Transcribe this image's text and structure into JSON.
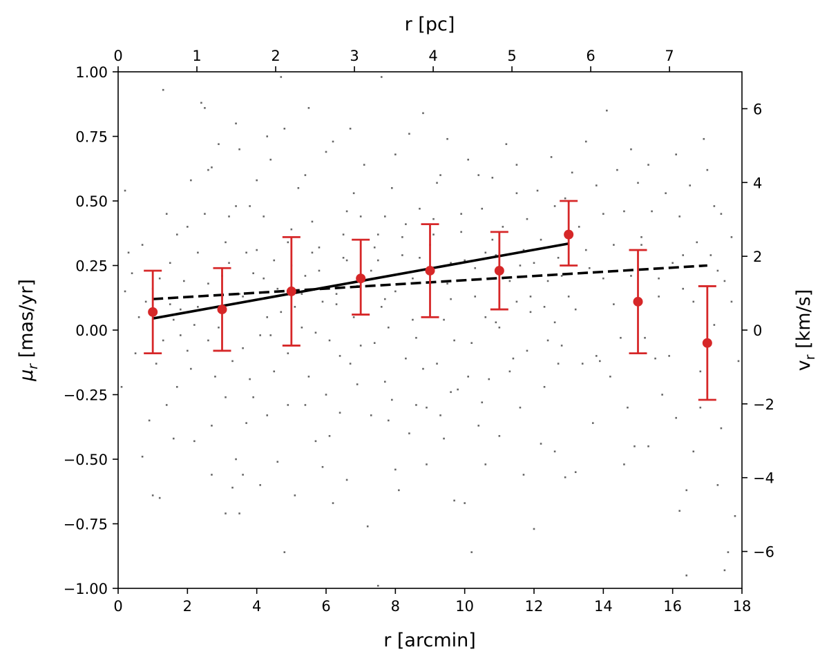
{
  "chart_data": {
    "type": "scatter",
    "xlabel": "r [arcmin]",
    "ylabel": "μ",
    "ylabel_subscript": "r",
    "ylabel_units": " [mas/yr]",
    "top_xlabel": "r [pc]",
    "right_ylabel": "v",
    "right_ylabel_subscript": "r",
    "right_ylabel_units": " [km/s]",
    "xlim": [
      0,
      18
    ],
    "ylim": [
      -1.0,
      1.0
    ],
    "top_xlim": [
      0,
      7.92
    ],
    "right_ylim": [
      -7.0,
      7.0
    ],
    "x_ticks": [
      {
        "value": 0,
        "label": "0"
      },
      {
        "value": 2,
        "label": "2"
      },
      {
        "value": 4,
        "label": "4"
      },
      {
        "value": 6,
        "label": "6"
      },
      {
        "value": 8,
        "label": "8"
      },
      {
        "value": 10,
        "label": "10"
      },
      {
        "value": 12,
        "label": "12"
      },
      {
        "value": 14,
        "label": "14"
      },
      {
        "value": 16,
        "label": "16"
      },
      {
        "value": 18,
        "label": "18"
      }
    ],
    "y_ticks": [
      {
        "value": 1.0,
        "label": "1.00"
      },
      {
        "value": 0.75,
        "label": "0.75"
      },
      {
        "value": 0.5,
        "label": "0.50"
      },
      {
        "value": 0.25,
        "label": "0.25"
      },
      {
        "value": 0.0,
        "label": "0.00"
      },
      {
        "value": -0.25,
        "label": "−0.25"
      },
      {
        "value": -0.5,
        "label": "−0.50"
      },
      {
        "value": -0.75,
        "label": "−0.75"
      },
      {
        "value": -1.0,
        "label": "−1.00"
      }
    ],
    "top_x_ticks": [
      {
        "value": 0,
        "label": "0"
      },
      {
        "value": 1,
        "label": "1"
      },
      {
        "value": 2,
        "label": "2"
      },
      {
        "value": 3,
        "label": "3"
      },
      {
        "value": 4,
        "label": "4"
      },
      {
        "value": 5,
        "label": "5"
      },
      {
        "value": 6,
        "label": "6"
      },
      {
        "value": 7,
        "label": "7"
      }
    ],
    "right_y_ticks": [
      {
        "value": 6,
        "label": "6"
      },
      {
        "value": 4,
        "label": "4"
      },
      {
        "value": 2,
        "label": "2"
      },
      {
        "value": 0,
        "label": "0"
      },
      {
        "value": -2,
        "label": "−2"
      },
      {
        "value": -4,
        "label": "−4"
      },
      {
        "value": -6,
        "label": "−6"
      }
    ],
    "binned": {
      "color": "#d62728",
      "points": [
        {
          "x": 1,
          "y": 0.07,
          "ylo": -0.09,
          "yhi": 0.23
        },
        {
          "x": 3,
          "y": 0.08,
          "ylo": -0.08,
          "yhi": 0.24
        },
        {
          "x": 5,
          "y": 0.15,
          "ylo": -0.06,
          "yhi": 0.36
        },
        {
          "x": 7,
          "y": 0.2,
          "ylo": 0.06,
          "yhi": 0.35
        },
        {
          "x": 9,
          "y": 0.23,
          "ylo": 0.05,
          "yhi": 0.41
        },
        {
          "x": 11,
          "y": 0.23,
          "ylo": 0.08,
          "yhi": 0.38
        },
        {
          "x": 13,
          "y": 0.37,
          "ylo": 0.25,
          "yhi": 0.5
        },
        {
          "x": 15,
          "y": 0.11,
          "ylo": -0.09,
          "yhi": 0.31
        },
        {
          "x": 17,
          "y": -0.05,
          "ylo": -0.27,
          "yhi": 0.17
        }
      ]
    },
    "fit_solid": {
      "color": "#000000",
      "x": [
        1,
        13
      ],
      "y": [
        0.045,
        0.335
      ]
    },
    "fit_dashed": {
      "color": "#000000",
      "x": [
        1,
        17
      ],
      "y": [
        0.12,
        0.25
      ]
    },
    "scatter_points": [
      [
        0.2,
        0.54
      ],
      [
        0.3,
        0.3
      ],
      [
        0.2,
        0.15
      ],
      [
        0.1,
        -0.22
      ],
      [
        0.5,
        -0.09
      ],
      [
        0.7,
        0.33
      ],
      [
        0.8,
        0.11
      ],
      [
        1.2,
        0.2
      ],
      [
        1.1,
        -0.13
      ],
      [
        0.9,
        -0.35
      ],
      [
        0.7,
        -0.49
      ],
      [
        1.0,
        -0.64
      ],
      [
        1.2,
        -0.65
      ],
      [
        1.3,
        0.93
      ],
      [
        1.4,
        -0.29
      ],
      [
        1.5,
        0.26
      ],
      [
        1.6,
        0.04
      ],
      [
        1.7,
        -0.22
      ],
      [
        1.8,
        -0.02
      ],
      [
        1.9,
        0.19
      ],
      [
        2.0,
        0.4
      ],
      [
        2.1,
        -0.15
      ],
      [
        2.2,
        -0.43
      ],
      [
        2.1,
        0.58
      ],
      [
        2.4,
        0.88
      ],
      [
        2.5,
        0.86
      ],
      [
        2.3,
        0.09
      ],
      [
        2.6,
        -0.04
      ],
      [
        2.7,
        -0.37
      ],
      [
        2.6,
        0.62
      ],
      [
        2.9,
        0.72
      ],
      [
        2.9,
        -0.08
      ],
      [
        3.0,
        0.21
      ],
      [
        3.1,
        0.34
      ],
      [
        3.2,
        0.44
      ],
      [
        3.3,
        -0.12
      ],
      [
        3.4,
        -0.5
      ],
      [
        3.1,
        -0.71
      ],
      [
        3.6,
        -0.56
      ],
      [
        3.3,
        -0.61
      ],
      [
        3.6,
        0.13
      ],
      [
        3.7,
        0.3
      ],
      [
        3.8,
        -0.19
      ],
      [
        3.5,
        -0.71
      ],
      [
        3.8,
        0.48
      ],
      [
        3.9,
        -0.26
      ],
      [
        3.4,
        0.8
      ],
      [
        3.5,
        0.7
      ],
      [
        4.0,
        0.58
      ],
      [
        4.1,
        -0.02
      ],
      [
        4.2,
        0.2
      ],
      [
        4.3,
        -0.33
      ],
      [
        4.4,
        0.66
      ],
      [
        4.5,
        0.27
      ],
      [
        4.6,
        -0.51
      ],
      [
        4.7,
        0.07
      ],
      [
        4.8,
        0.78
      ],
      [
        4.7,
        0.98
      ],
      [
        4.9,
        -0.09
      ],
      [
        5.0,
        0.39
      ],
      [
        5.1,
        -0.64
      ],
      [
        5.2,
        0.55
      ],
      [
        5.3,
        0.14
      ],
      [
        5.4,
        -0.29
      ],
      [
        5.5,
        0.86
      ],
      [
        5.6,
        0.42
      ],
      [
        5.7,
        -0.01
      ],
      [
        5.8,
        0.32
      ],
      [
        5.9,
        -0.53
      ],
      [
        6.0,
        0.69
      ],
      [
        6.1,
        -0.41
      ],
      [
        6.2,
        0.73
      ],
      [
        6.3,
        0.1
      ],
      [
        6.4,
        -0.1
      ],
      [
        6.5,
        0.28
      ],
      [
        6.6,
        -0.58
      ],
      [
        6.7,
        0.78
      ],
      [
        6.6,
        0.46
      ],
      [
        6.8,
        0.05
      ],
      [
        6.9,
        -0.21
      ],
      [
        7.0,
        0.44
      ],
      [
        7.1,
        0.64
      ],
      [
        7.2,
        -0.76
      ],
      [
        7.3,
        0.23
      ],
      [
        7.4,
        -0.05
      ],
      [
        7.5,
        0.37
      ],
      [
        7.6,
        0.98
      ],
      [
        7.5,
        -0.99
      ],
      [
        7.7,
        0.12
      ],
      [
        7.8,
        -0.35
      ],
      [
        7.9,
        0.55
      ],
      [
        8.0,
        0.68
      ],
      [
        8.1,
        -0.62
      ],
      [
        8.2,
        0.29
      ],
      [
        8.3,
        -0.11
      ],
      [
        8.4,
        0.76
      ],
      [
        8.5,
        0.04
      ],
      [
        8.6,
        -0.29
      ],
      [
        8.7,
        0.47
      ],
      [
        8.8,
        0.84
      ],
      [
        8.9,
        -0.52
      ],
      [
        9.0,
        0.18
      ],
      [
        9.1,
        0.37
      ],
      [
        9.2,
        -0.13
      ],
      [
        9.3,
        0.6
      ],
      [
        9.4,
        -0.42
      ],
      [
        9.5,
        0.74
      ],
      [
        9.6,
        0.26
      ],
      [
        9.7,
        -0.04
      ],
      [
        9.8,
        -0.23
      ],
      [
        9.9,
        0.45
      ],
      [
        10.0,
        -0.67
      ],
      [
        10.2,
        -0.86
      ],
      [
        10.1,
        0.66
      ],
      [
        10.3,
        0.13
      ],
      [
        10.4,
        -0.37
      ],
      [
        10.5,
        0.47
      ],
      [
        10.6,
        0.3
      ],
      [
        10.7,
        -0.19
      ],
      [
        10.8,
        0.59
      ],
      [
        10.9,
        0.03
      ],
      [
        11.0,
        -0.41
      ],
      [
        11.1,
        0.4
      ],
      [
        11.2,
        0.72
      ],
      [
        11.3,
        0.19
      ],
      [
        11.4,
        -0.11
      ],
      [
        11.5,
        0.64
      ],
      [
        11.6,
        0.25
      ],
      [
        11.7,
        -0.56
      ],
      [
        11.8,
        0.43
      ],
      [
        11.9,
        0.07
      ],
      [
        12.0,
        -0.77
      ],
      [
        12.1,
        0.54
      ],
      [
        12.2,
        0.35
      ],
      [
        12.3,
        -0.22
      ],
      [
        12.4,
        0.19
      ],
      [
        12.5,
        0.67
      ],
      [
        12.6,
        -0.47
      ],
      [
        12.7,
        0.28
      ],
      [
        12.8,
        -0.06
      ],
      [
        12.9,
        0.51
      ],
      [
        13.0,
        0.13
      ],
      [
        13.1,
        0.61
      ],
      [
        13.2,
        -0.55
      ],
      [
        13.3,
        0.4
      ],
      [
        13.4,
        -0.13
      ],
      [
        13.6,
        0.24
      ],
      [
        13.8,
        0.56
      ],
      [
        13.9,
        -0.12
      ],
      [
        14.0,
        0.45
      ],
      [
        14.1,
        0.85
      ],
      [
        14.2,
        -0.18
      ],
      [
        14.3,
        0.33
      ],
      [
        14.4,
        0.62
      ],
      [
        14.5,
        -0.03
      ],
      [
        14.6,
        0.46
      ],
      [
        14.7,
        -0.3
      ],
      [
        14.8,
        0.21
      ],
      [
        14.9,
        -0.45
      ],
      [
        15.0,
        0.57
      ],
      [
        15.1,
        0.36
      ],
      [
        15.2,
        -0.03
      ],
      [
        15.3,
        0.64
      ],
      [
        15.4,
        0.46
      ],
      [
        15.5,
        -0.11
      ],
      [
        15.6,
        0.13
      ],
      [
        15.7,
        -0.25
      ],
      [
        15.8,
        0.53
      ],
      [
        15.9,
        -0.1
      ],
      [
        16.0,
        0.26
      ],
      [
        16.1,
        -0.34
      ],
      [
        16.2,
        0.44
      ],
      [
        16.3,
        0.16
      ],
      [
        16.4,
        -0.62
      ],
      [
        16.5,
        0.56
      ],
      [
        16.6,
        -0.47
      ],
      [
        16.7,
        0.34
      ],
      [
        16.8,
        -0.16
      ],
      [
        16.9,
        0.74
      ],
      [
        17.0,
        0.62
      ],
      [
        17.1,
        0.29
      ],
      [
        17.2,
        0.48
      ],
      [
        17.3,
        -0.6
      ],
      [
        17.4,
        0.45
      ],
      [
        17.5,
        0.19
      ],
      [
        17.6,
        -0.86
      ],
      [
        17.7,
        0.36
      ],
      [
        17.8,
        -0.72
      ],
      [
        17.9,
        -0.12
      ],
      [
        17.7,
        0.11
      ],
      [
        17.4,
        -0.38
      ],
      [
        16.4,
        -0.95
      ],
      [
        17.5,
        -0.93
      ],
      [
        16.2,
        -0.7
      ],
      [
        14.6,
        -0.52
      ],
      [
        13.7,
        -0.36
      ],
      [
        12.9,
        -0.57
      ],
      [
        10.6,
        -0.52
      ],
      [
        9.7,
        -0.66
      ],
      [
        8.0,
        -0.54
      ],
      [
        6.2,
        -0.67
      ],
      [
        4.1,
        -0.6
      ],
      [
        2.7,
        -0.56
      ],
      [
        1.6,
        -0.42
      ],
      [
        4.8,
        -0.86
      ],
      [
        11.6,
        -0.3
      ],
      [
        12.2,
        -0.44
      ],
      [
        5.7,
        -0.43
      ],
      [
        7.9,
        -0.27
      ],
      [
        9.3,
        -0.33
      ],
      [
        2.8,
        -0.18
      ],
      [
        3.7,
        -0.36
      ],
      [
        6.4,
        -0.32
      ],
      [
        8.9,
        -0.3
      ],
      [
        15.3,
        -0.45
      ],
      [
        16.8,
        -0.3
      ],
      [
        17.2,
        0.02
      ],
      [
        16.3,
        0.29
      ],
      [
        15.1,
        0.33
      ],
      [
        14.0,
        0.2
      ],
      [
        13.2,
        0.08
      ],
      [
        12.4,
        -0.04
      ],
      [
        11.9,
        0.13
      ],
      [
        10.6,
        0.05
      ],
      [
        9.6,
        0.12
      ],
      [
        8.5,
        0.2
      ],
      [
        7.6,
        0.09
      ],
      [
        6.9,
        0.17
      ],
      [
        5.9,
        0.11
      ],
      [
        5.1,
        0.09
      ],
      [
        4.3,
        0.05
      ],
      [
        3.5,
        0.14
      ],
      [
        2.6,
        0.18
      ],
      [
        1.8,
        0.08
      ],
      [
        1.0,
        0.16
      ],
      [
        1.5,
        0.1
      ],
      [
        2.2,
        0.02
      ],
      [
        3.0,
        0.09
      ],
      [
        3.9,
        0.22
      ],
      [
        4.6,
        0.16
      ],
      [
        5.4,
        0.21
      ],
      [
        6.3,
        0.14
      ],
      [
        7.1,
        0.19
      ],
      [
        8.0,
        0.15
      ],
      [
        8.7,
        0.28
      ],
      [
        9.5,
        0.18
      ],
      [
        10.3,
        0.24
      ],
      [
        11.1,
        0.2
      ],
      [
        12.0,
        0.26
      ],
      [
        12.8,
        0.21
      ],
      [
        2.3,
        0.3
      ],
      [
        3.2,
        0.26
      ],
      [
        4.0,
        0.31
      ],
      [
        4.9,
        0.34
      ],
      [
        5.6,
        0.3
      ],
      [
        6.5,
        0.37
      ],
      [
        7.4,
        0.32
      ],
      [
        8.3,
        0.41
      ],
      [
        9.0,
        0.33
      ],
      [
        9.9,
        0.38
      ],
      [
        10.8,
        0.35
      ],
      [
        11.7,
        0.31
      ],
      [
        2.0,
        -0.08
      ],
      [
        2.9,
        0.01
      ],
      [
        3.6,
        -0.07
      ],
      [
        4.4,
        -0.02
      ],
      [
        5.3,
        0.01
      ],
      [
        6.1,
        -0.04
      ],
      [
        7.0,
        -0.06
      ],
      [
        7.8,
        0.01
      ],
      [
        8.6,
        -0.03
      ],
      [
        9.4,
        0.04
      ],
      [
        10.2,
        -0.05
      ],
      [
        11.0,
        0.01
      ],
      [
        11.8,
        -0.08
      ],
      [
        12.6,
        0.03
      ],
      [
        1.3,
        -0.04
      ],
      [
        0.6,
        0.05
      ],
      [
        0.4,
        0.22
      ],
      [
        1.7,
        0.37
      ],
      [
        2.5,
        0.45
      ],
      [
        3.4,
        0.48
      ],
      [
        4.2,
        0.44
      ],
      [
        5.0,
        0.25
      ],
      [
        5.8,
        0.23
      ],
      [
        6.6,
        0.27
      ],
      [
        7.5,
        0.27
      ],
      [
        8.2,
        0.36
      ],
      [
        9.1,
        0.43
      ],
      [
        10.0,
        0.27
      ],
      [
        10.9,
        0.29
      ],
      [
        11.5,
        0.11
      ],
      [
        12.3,
        0.09
      ],
      [
        13.5,
        0.31
      ],
      [
        14.3,
        0.1
      ],
      [
        15.6,
        0.2
      ],
      [
        16.6,
        0.11
      ],
      [
        17.3,
        0.23
      ],
      [
        4.5,
        -0.16
      ],
      [
        5.5,
        -0.18
      ],
      [
        6.7,
        -0.13
      ],
      [
        7.7,
        -0.2
      ],
      [
        8.8,
        -0.15
      ],
      [
        10.1,
        -0.18
      ],
      [
        11.3,
        -0.16
      ],
      [
        12.7,
        -0.13
      ],
      [
        13.8,
        -0.1
      ],
      [
        15.2,
        -0.09
      ],
      [
        3.1,
        -0.26
      ],
      [
        4.9,
        -0.29
      ],
      [
        6.0,
        -0.25
      ],
      [
        7.3,
        -0.33
      ],
      [
        8.4,
        -0.4
      ],
      [
        9.6,
        -0.24
      ],
      [
        10.5,
        -0.28
      ],
      [
        1.4,
        0.45
      ],
      [
        2.7,
        0.63
      ],
      [
        4.3,
        0.75
      ],
      [
        5.4,
        0.6
      ],
      [
        6.8,
        0.53
      ],
      [
        7.7,
        0.44
      ],
      [
        9.2,
        0.57
      ],
      [
        10.4,
        0.6
      ],
      [
        11.5,
        0.53
      ],
      [
        12.6,
        0.48
      ],
      [
        13.5,
        0.73
      ],
      [
        14.8,
        0.7
      ],
      [
        16.1,
        0.68
      ]
    ]
  }
}
